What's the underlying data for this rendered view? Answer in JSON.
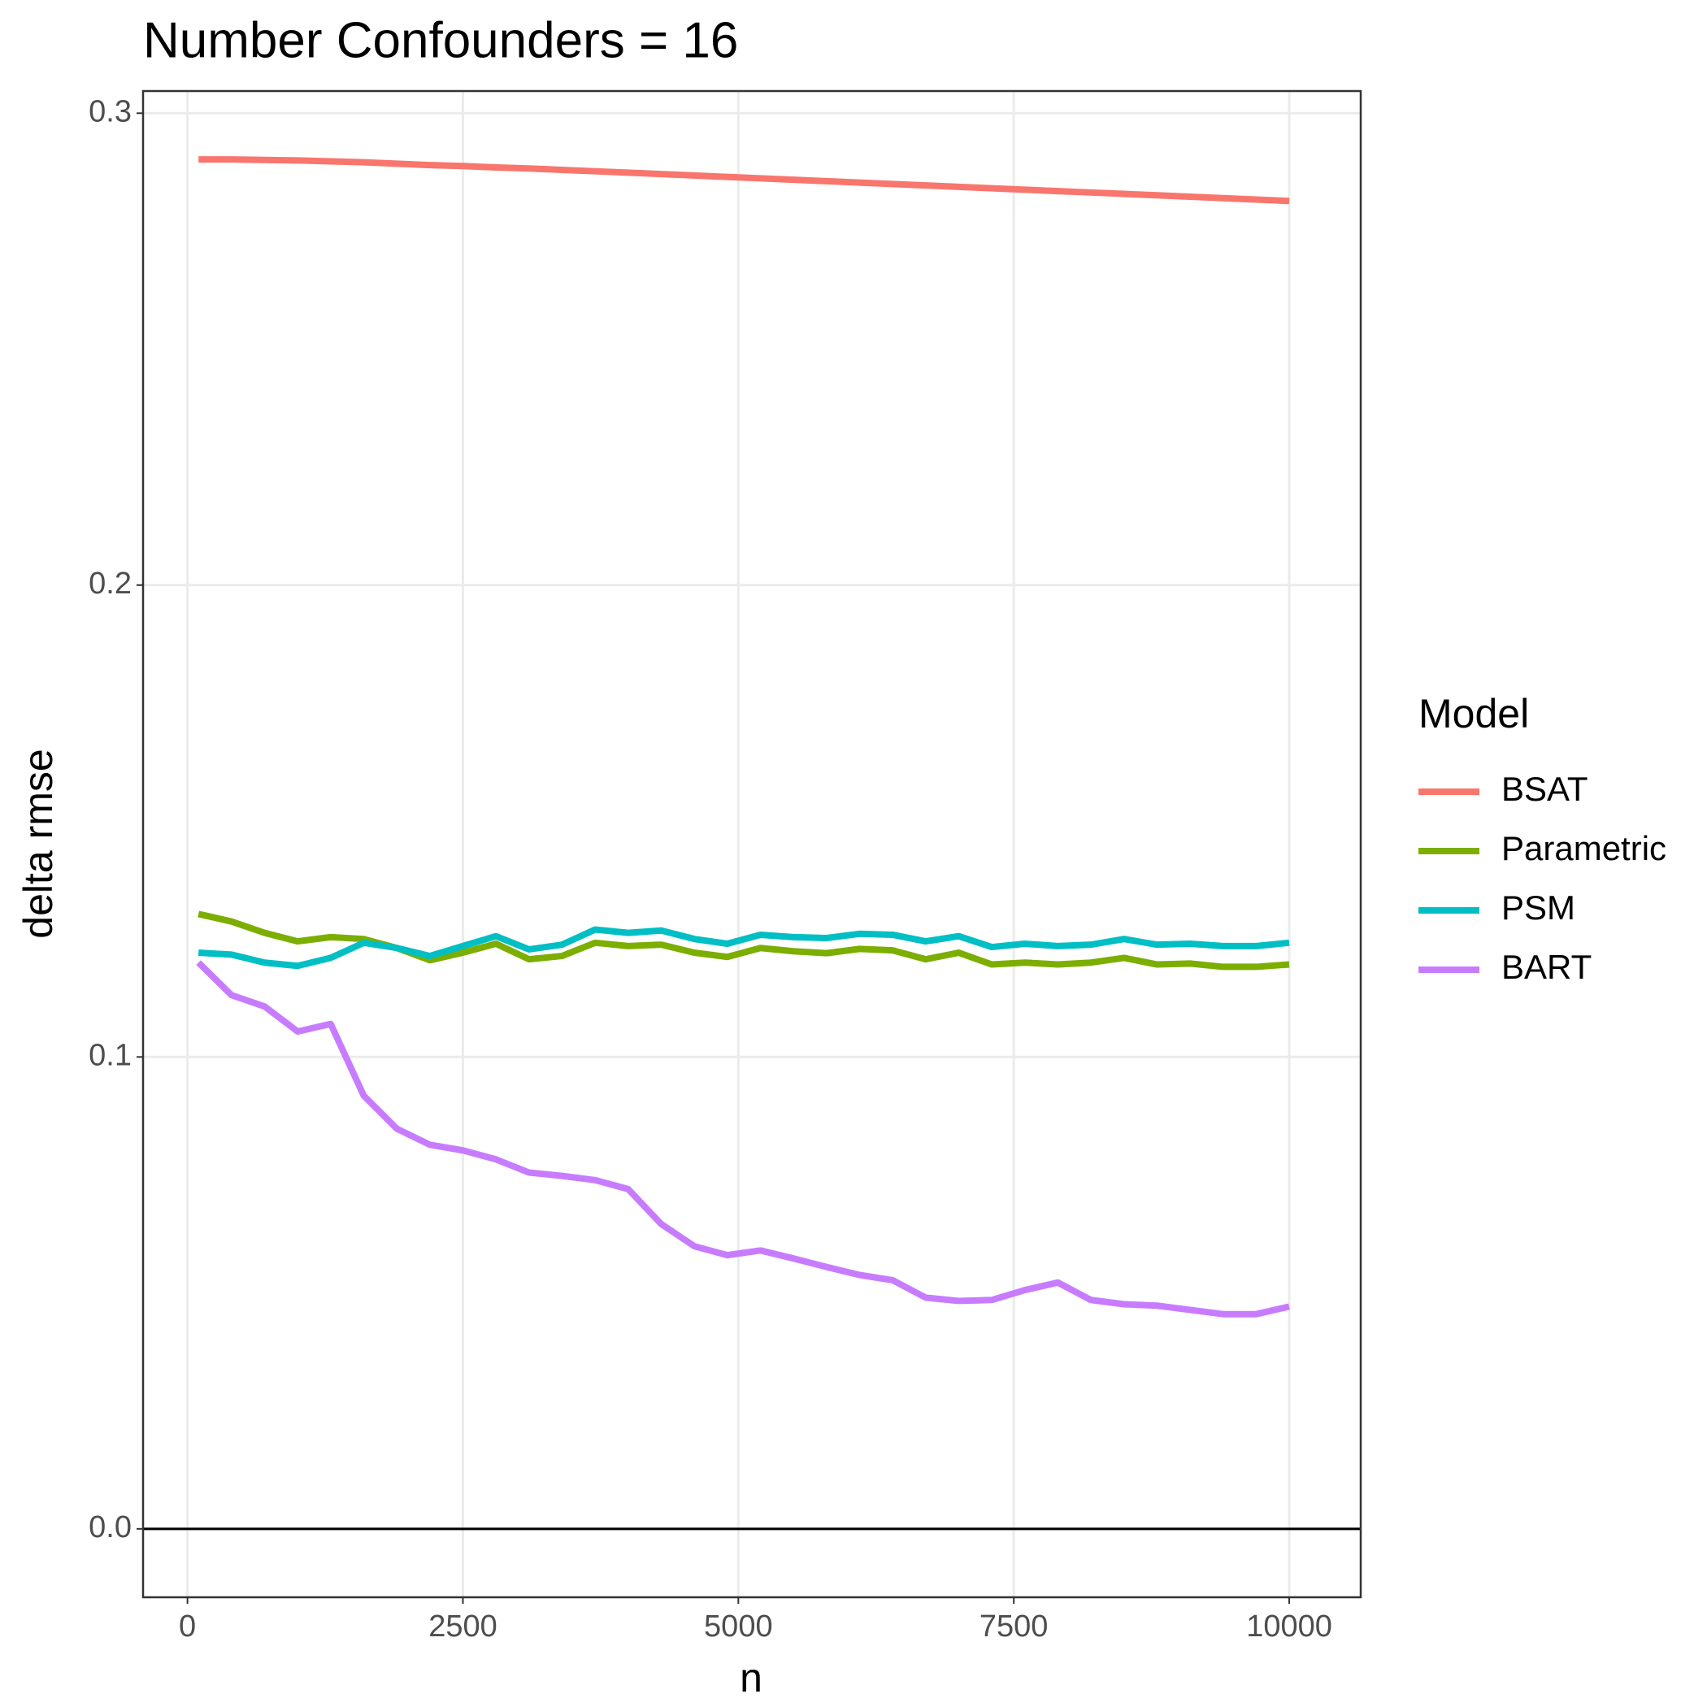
{
  "chart_data": {
    "type": "line",
    "title": "Number Confounders = 16",
    "x_label": "n",
    "y_label": "delta rmse",
    "legend_title": "Model",
    "x": [
      100,
      400,
      700,
      1000,
      1300,
      1600,
      1900,
      2200,
      2500,
      2800,
      3100,
      3400,
      3700,
      4000,
      4300,
      4600,
      4900,
      5200,
      5500,
      5800,
      6100,
      6400,
      6700,
      7000,
      7300,
      7600,
      7900,
      8200,
      8500,
      8800,
      9100,
      9400,
      9700,
      10000
    ],
    "series": [
      {
        "name": "BSAT",
        "color": "#F8766D",
        "values": [
          0.2902,
          0.2902,
          0.2901,
          0.29,
          0.2898,
          0.2896,
          0.2893,
          0.289,
          0.2888,
          0.2885,
          0.2883,
          0.288,
          0.2877,
          0.2874,
          0.2871,
          0.2868,
          0.2865,
          0.2862,
          0.2859,
          0.2856,
          0.2853,
          0.285,
          0.2847,
          0.2844,
          0.2841,
          0.2838,
          0.2835,
          0.2832,
          0.2829,
          0.2826,
          0.2823,
          0.282,
          0.2817,
          0.2814
        ]
      },
      {
        "name": "Parametric",
        "color": "#7CAE00",
        "values": [
          0.1303,
          0.1287,
          0.1263,
          0.1245,
          0.1254,
          0.125,
          0.1231,
          0.1205,
          0.1221,
          0.124,
          0.1207,
          0.1214,
          0.1242,
          0.1235,
          0.1238,
          0.1221,
          0.1212,
          0.1231,
          0.1224,
          0.122,
          0.1229,
          0.1226,
          0.1207,
          0.1221,
          0.1196,
          0.12,
          0.1196,
          0.12,
          0.121,
          0.1196,
          0.1198,
          0.1191,
          0.1191,
          0.1196
        ]
      },
      {
        "name": "PSM",
        "color": "#00BFC4",
        "values": [
          0.1221,
          0.1217,
          0.12,
          0.1193,
          0.121,
          0.1242,
          0.1231,
          0.1214,
          0.1235,
          0.1256,
          0.1228,
          0.1238,
          0.127,
          0.1263,
          0.1268,
          0.125,
          0.124,
          0.1259,
          0.1254,
          0.1252,
          0.1261,
          0.1259,
          0.1245,
          0.1256,
          0.1233,
          0.124,
          0.1235,
          0.1238,
          0.125,
          0.1238,
          0.124,
          0.1235,
          0.1235,
          0.1242
        ]
      },
      {
        "name": "BART",
        "color": "#C77CFF",
        "values": [
          0.12,
          0.1131,
          0.1107,
          0.1054,
          0.107,
          0.0918,
          0.0848,
          0.0814,
          0.0802,
          0.0783,
          0.0755,
          0.0748,
          0.0739,
          0.072,
          0.0646,
          0.0599,
          0.058,
          0.059,
          0.0573,
          0.0555,
          0.0538,
          0.0527,
          0.049,
          0.0483,
          0.0485,
          0.0506,
          0.0522,
          0.0485,
          0.0476,
          0.0473,
          0.0464,
          0.0455,
          0.0455,
          0.0471
        ]
      }
    ],
    "xlim": [
      -403,
      10649
    ],
    "ylim": [
      -0.0145,
      0.3047
    ],
    "xticks": [
      0,
      2500,
      5000,
      7500,
      10000
    ],
    "yticks": [
      {
        "value": 0,
        "label": "0.0"
      },
      0.1,
      0.2,
      0.3
    ],
    "hline": 0,
    "grid": true
  }
}
